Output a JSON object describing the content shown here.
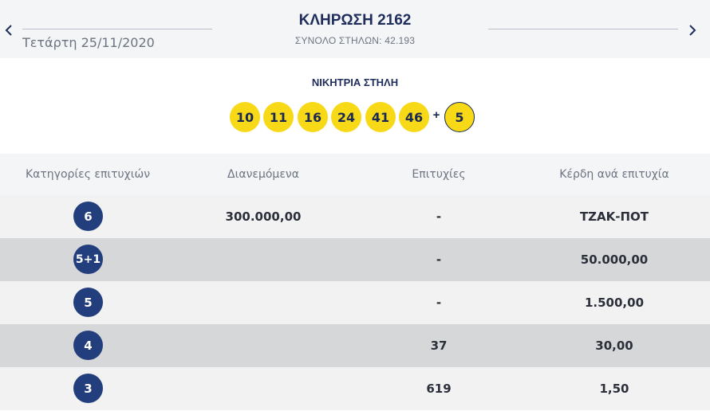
{
  "header": {
    "title": "ΚΛΗΡΩΣΗ 2162",
    "date": "Τετάρτη 25/11/2020",
    "total_columns": "ΣΥΝΟΛΟ ΣΤΗΛΩΝ: 42.193",
    "prev_icon": "chevron-left-icon",
    "next_icon": "chevron-right-icon"
  },
  "winning": {
    "label": "ΝΙΚΗΤΡΙΑ ΣΤΗΛΗ",
    "numbers": [
      "10",
      "11",
      "16",
      "24",
      "41",
      "46"
    ],
    "plus": "+",
    "bonus": "5",
    "ball_color": "#f7d917"
  },
  "table": {
    "headers": [
      "Κατηγορίες επιτυχιών",
      "Διανεμόμενα",
      "Επιτυχίες",
      "Κέρδη ανά επιτυχία"
    ],
    "rows": [
      {
        "category": "6",
        "distributed": "300.000,00",
        "winners": "-",
        "prize": "ΤΖΑΚ-ΠΟΤ"
      },
      {
        "category": "5+1",
        "distributed": "",
        "winners": "-",
        "prize": "50.000,00"
      },
      {
        "category": "5",
        "distributed": "",
        "winners": "-",
        "prize": "1.500,00"
      },
      {
        "category": "4",
        "distributed": "",
        "winners": "37",
        "prize": "30,00"
      },
      {
        "category": "3",
        "distributed": "",
        "winners": "619",
        "prize": "1,50"
      }
    ],
    "badge_color": "#233e7c"
  }
}
